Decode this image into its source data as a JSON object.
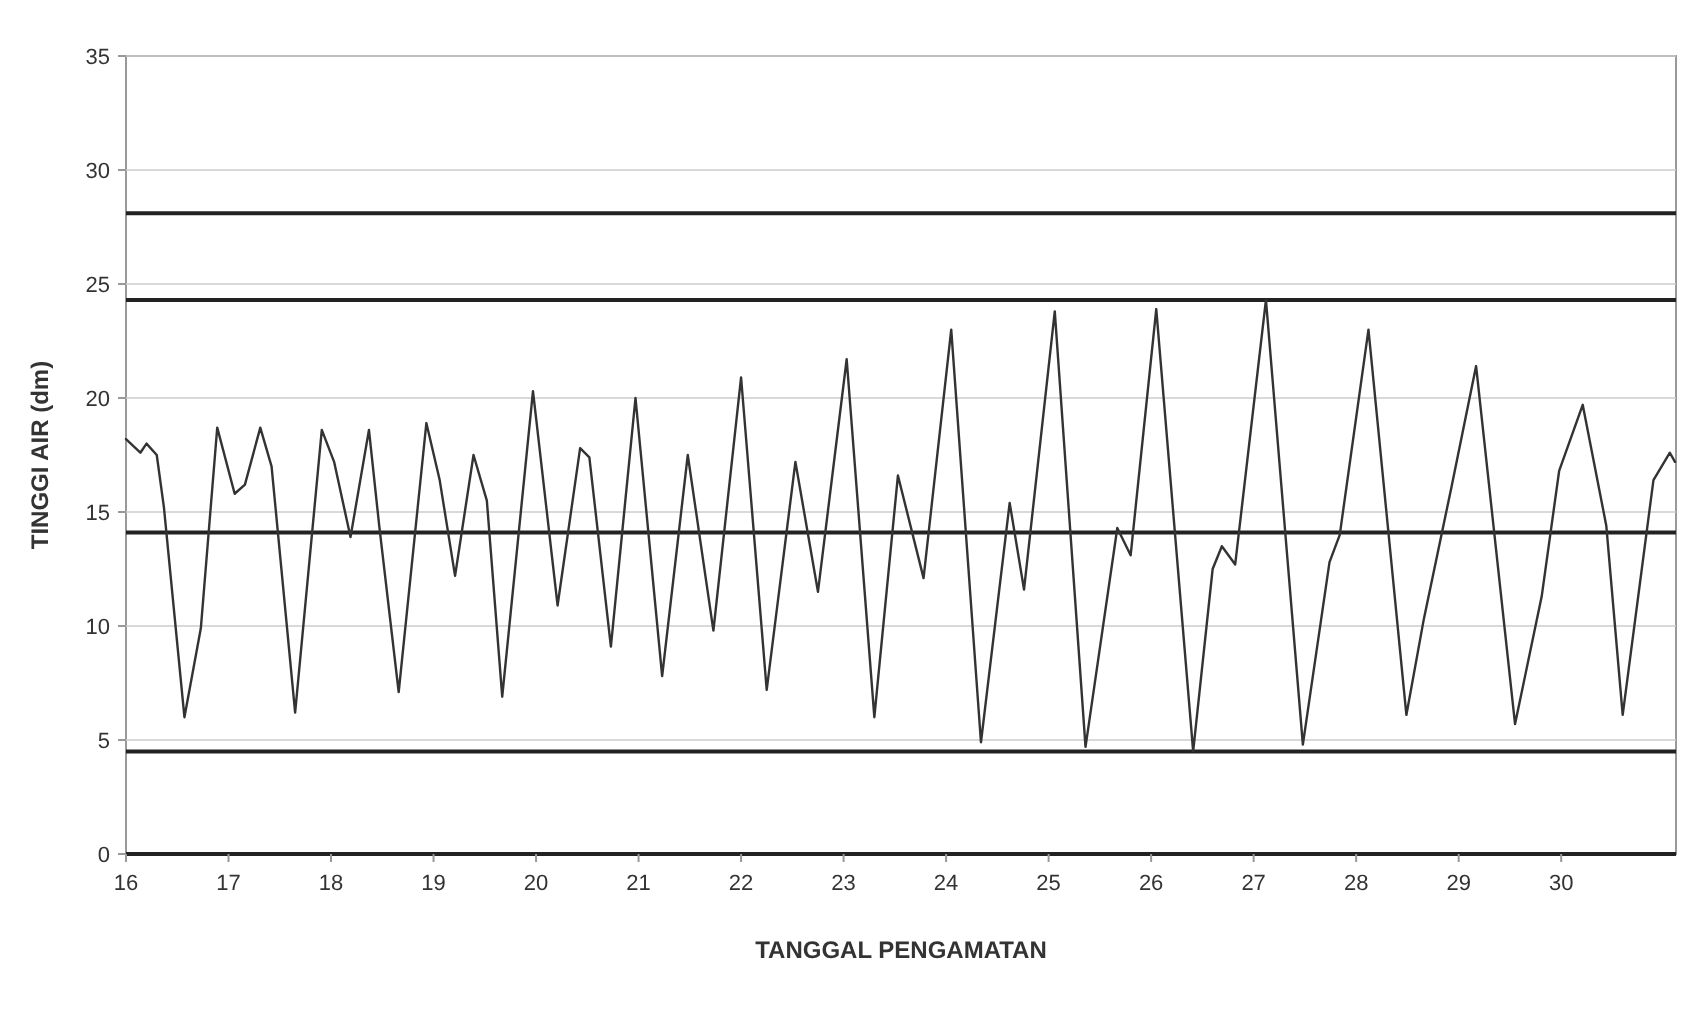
{
  "chart_data": {
    "type": "line",
    "xlabel": "TANGGAL PENGAMATAN",
    "ylabel": "TINGGI AIR (dm)",
    "xlim": [
      16,
      31.12
    ],
    "xticks": [
      16,
      17,
      18,
      19,
      20,
      21,
      22,
      23,
      24,
      25,
      26,
      27,
      28,
      29,
      30
    ],
    "ylim": [
      0,
      35
    ],
    "yticks": [
      0,
      5,
      10,
      15,
      20,
      25,
      30,
      35
    ],
    "grid": "y",
    "marker": "none",
    "line_style": "solid",
    "series": [
      {
        "color": "#333333",
        "x": [
          16.0,
          16.14,
          16.2,
          16.3,
          16.37,
          16.57,
          16.73,
          16.89,
          17.06,
          17.16,
          17.31,
          17.42,
          17.65,
          17.91,
          18.03,
          18.19,
          18.37,
          18.47,
          18.66,
          18.93,
          19.06,
          19.21,
          19.39,
          19.52,
          19.67,
          19.97,
          20.21,
          20.43,
          20.52,
          20.73,
          20.97,
          21.23,
          21.48,
          21.73,
          22.0,
          22.25,
          22.53,
          22.75,
          23.03,
          23.3,
          23.53,
          23.78,
          24.05,
          24.34,
          24.62,
          24.76,
          25.06,
          25.36,
          25.67,
          25.8,
          26.05,
          26.41,
          26.6,
          26.69,
          26.82,
          27.12,
          27.48,
          27.74,
          27.84,
          28.12,
          28.49,
          28.66,
          28.93,
          29.17,
          29.55,
          29.81,
          29.98,
          30.21,
          30.44,
          30.6,
          30.9,
          31.06,
          31.11
        ],
        "values": [
          18.2,
          17.6,
          18.0,
          17.5,
          15.2,
          6.0,
          9.9,
          18.7,
          15.8,
          16.2,
          18.7,
          17.0,
          6.2,
          18.6,
          17.2,
          13.9,
          18.6,
          14.4,
          7.1,
          18.9,
          16.4,
          12.2,
          17.5,
          15.5,
          6.9,
          20.3,
          10.9,
          17.8,
          17.4,
          9.1,
          20.0,
          7.8,
          17.5,
          9.8,
          20.9,
          7.2,
          17.2,
          11.5,
          21.7,
          6.0,
          16.6,
          12.1,
          23.0,
          4.9,
          15.4,
          11.6,
          23.8,
          4.7,
          14.3,
          13.1,
          23.9,
          4.5,
          12.5,
          13.5,
          12.7,
          24.3,
          4.8,
          12.8,
          14.0,
          23.0,
          6.1,
          10.3,
          16.1,
          21.4,
          5.7,
          11.3,
          16.8,
          19.7,
          14.4,
          6.1,
          16.4,
          17.6,
          17.2
        ]
      }
    ],
    "ref_lines": [
      {
        "axis": "y",
        "value": 28.1,
        "color": "#222222"
      },
      {
        "axis": "y",
        "value": 24.3,
        "color": "#222222"
      },
      {
        "axis": "y",
        "value": 14.1,
        "color": "#222222"
      },
      {
        "axis": "y",
        "value": 4.5,
        "color": "#222222"
      },
      {
        "axis": "y",
        "value": 0,
        "color": "#222222"
      }
    ]
  }
}
